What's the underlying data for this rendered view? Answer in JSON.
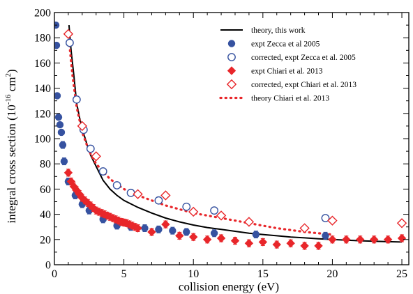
{
  "chart_data": {
    "type": "scatter",
    "xlabel": "collision energy (eV)",
    "ylabel": "integral cross section",
    "ylabel_unit_base": "(10",
    "ylabel_unit_exp1": "-16",
    "ylabel_unit_mid": " cm",
    "ylabel_unit_exp2": "2",
    "ylabel_unit_end": ")",
    "xlim": [
      0,
      25.5
    ],
    "ylim": [
      0,
      200
    ],
    "xticks": [
      0,
      5,
      10,
      15,
      20,
      25
    ],
    "yticks": [
      0,
      20,
      40,
      60,
      80,
      100,
      120,
      140,
      160,
      180,
      200
    ],
    "grid": false,
    "legend_position": "top-right",
    "colors": {
      "blue": "#3652a0",
      "red": "#e8262a",
      "black": "#000000"
    },
    "series": [
      {
        "name": "theory, this work",
        "kind": "line-solid",
        "color": "#000000",
        "points": [
          [
            1.05,
            190
          ],
          [
            1.2,
            170
          ],
          [
            1.4,
            150
          ],
          [
            1.6,
            128
          ],
          [
            1.8,
            117
          ],
          [
            2.0,
            108
          ],
          [
            2.3,
            97
          ],
          [
            2.6,
            87
          ],
          [
            3.0,
            78
          ],
          [
            3.5,
            67
          ],
          [
            4.0,
            60
          ],
          [
            4.5,
            55
          ],
          [
            5.0,
            51
          ],
          [
            6.0,
            45.5
          ],
          [
            7.0,
            41
          ],
          [
            8.0,
            37
          ],
          [
            9.0,
            34
          ],
          [
            10.0,
            31.5
          ],
          [
            11,
            29.5
          ],
          [
            12,
            28
          ],
          [
            13,
            26.5
          ],
          [
            14,
            25
          ],
          [
            15,
            24
          ],
          [
            16,
            23
          ],
          [
            17,
            22
          ],
          [
            18,
            21.3
          ],
          [
            19,
            20.6
          ],
          [
            20,
            20
          ],
          [
            21,
            19.5
          ],
          [
            22,
            19
          ],
          [
            23,
            18.6
          ],
          [
            24,
            18.3
          ],
          [
            25,
            18
          ]
        ]
      },
      {
        "name": "expt Zecca et al 2005",
        "kind": "filled-circle",
        "color": "#3652a0",
        "points": [
          [
            0.1,
            190
          ],
          [
            0.15,
            174
          ],
          [
            0.2,
            134
          ],
          [
            0.3,
            117
          ],
          [
            0.4,
            111
          ],
          [
            0.5,
            105
          ],
          [
            0.6,
            95
          ],
          [
            0.7,
            82
          ],
          [
            1.0,
            66
          ],
          [
            1.5,
            55
          ],
          [
            2.0,
            48
          ],
          [
            2.5,
            43
          ],
          [
            3.5,
            36
          ],
          [
            4.5,
            31
          ],
          [
            5.5,
            30
          ],
          [
            6.5,
            29
          ],
          [
            7.5,
            28
          ],
          [
            8.5,
            27
          ],
          [
            9.5,
            26
          ],
          [
            11.5,
            25
          ],
          [
            14.5,
            24
          ],
          [
            19.5,
            23
          ]
        ]
      },
      {
        "name": "corrected, expt Zecca et al. 2005",
        "kind": "open-circle",
        "color": "#3652a0",
        "points": [
          [
            1.1,
            176
          ],
          [
            1.6,
            131
          ],
          [
            2.1,
            107
          ],
          [
            2.6,
            92
          ],
          [
            3.5,
            74
          ],
          [
            4.5,
            63
          ],
          [
            5.5,
            57
          ],
          [
            7.5,
            51
          ],
          [
            9.5,
            46
          ],
          [
            11.5,
            43
          ],
          [
            19.5,
            37
          ]
        ]
      },
      {
        "name": "expt Chiari et al. 2013",
        "kind": "filled-diamond",
        "color": "#e8262a",
        "points": [
          [
            1.0,
            73
          ],
          [
            1.2,
            66
          ],
          [
            1.4,
            62
          ],
          [
            1.6,
            59
          ],
          [
            1.8,
            56
          ],
          [
            2.0,
            53
          ],
          [
            2.2,
            51
          ],
          [
            2.4,
            49
          ],
          [
            2.6,
            47
          ],
          [
            2.8,
            45
          ],
          [
            3.0,
            43
          ],
          [
            3.2,
            42
          ],
          [
            3.4,
            41
          ],
          [
            3.6,
            40
          ],
          [
            3.8,
            39
          ],
          [
            4.0,
            38
          ],
          [
            4.2,
            37
          ],
          [
            4.4,
            36
          ],
          [
            4.6,
            35
          ],
          [
            4.8,
            34
          ],
          [
            5.0,
            33.5
          ],
          [
            5.2,
            33
          ],
          [
            5.4,
            32
          ],
          [
            5.6,
            31
          ],
          [
            5.8,
            30
          ],
          [
            6.0,
            29
          ],
          [
            7.0,
            26
          ],
          [
            8.0,
            32
          ],
          [
            9.0,
            23
          ],
          [
            10.0,
            22
          ],
          [
            11.0,
            20
          ],
          [
            12.0,
            21
          ],
          [
            13.0,
            19
          ],
          [
            14.0,
            17
          ],
          [
            15.0,
            18
          ],
          [
            16.0,
            16
          ],
          [
            17.0,
            17
          ],
          [
            18.0,
            15
          ],
          [
            19.0,
            15
          ],
          [
            20.0,
            20
          ],
          [
            21.0,
            20
          ],
          [
            22.0,
            20
          ],
          [
            23.0,
            20
          ],
          [
            24.0,
            20
          ],
          [
            25.0,
            21
          ]
        ]
      },
      {
        "name": "corrected, expt Chiari et al. 2013",
        "kind": "open-diamond",
        "color": "#e8262a",
        "points": [
          [
            1.0,
            183
          ],
          [
            2.0,
            110
          ],
          [
            3.0,
            86
          ],
          [
            6.0,
            56
          ],
          [
            8.0,
            55
          ],
          [
            10.0,
            42
          ],
          [
            12.0,
            39
          ],
          [
            14.0,
            34
          ],
          [
            18.0,
            29
          ],
          [
            20.0,
            35
          ],
          [
            25.0,
            33
          ]
        ]
      },
      {
        "name": "theory Chiari et al. 2013",
        "kind": "line-dotted",
        "color": "#e8262a",
        "points": [
          [
            1.05,
            178
          ],
          [
            1.3,
            150
          ],
          [
            1.6,
            125
          ],
          [
            2.0,
            105
          ],
          [
            2.5,
            90
          ],
          [
            3.0,
            80
          ],
          [
            3.5,
            74
          ],
          [
            4.0,
            68
          ],
          [
            4.5,
            64
          ],
          [
            5.0,
            60
          ],
          [
            6.0,
            55
          ],
          [
            7.0,
            51
          ],
          [
            8.0,
            47
          ],
          [
            9.0,
            44
          ],
          [
            10.0,
            41
          ],
          [
            11.0,
            39
          ],
          [
            12.0,
            37
          ],
          [
            13.0,
            35
          ],
          [
            14.0,
            33
          ],
          [
            15.0,
            31
          ],
          [
            16.0,
            29
          ],
          [
            17.0,
            27.5
          ],
          [
            18.0,
            26
          ],
          [
            19.0,
            25
          ],
          [
            20.0,
            24
          ]
        ]
      }
    ],
    "error_bar_series": [
      "expt Zecca et al 2005",
      "expt Chiari et al. 2013"
    ]
  }
}
